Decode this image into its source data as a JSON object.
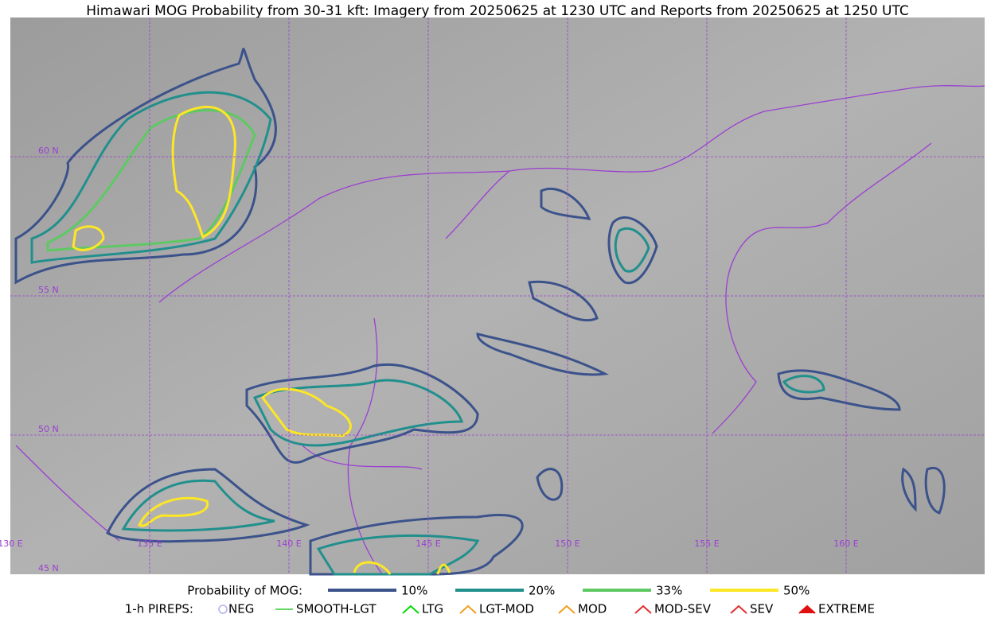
{
  "header": {
    "title": "Himawari MOG Probability from 30-31 kft: Imagery from 20250625 at 1230 UTC and Reports from 20250625 at 1250 UTC"
  },
  "map": {
    "lat_labels": [
      "60 N",
      "55 N",
      "50 N",
      "45 N"
    ],
    "lon_labels": [
      "130 E",
      "135 E",
      "140 E",
      "145 E",
      "150 E",
      "155 E",
      "160 E"
    ]
  },
  "legend": {
    "probability": {
      "title": "Probability of MOG:",
      "items": [
        {
          "label": "10%",
          "color": "#3b528b"
        },
        {
          "label": "20%",
          "color": "#21908d"
        },
        {
          "label": "33%",
          "color": "#5ec962"
        },
        {
          "label": "50%",
          "color": "#fde725"
        }
      ]
    },
    "pireps": {
      "title": "1-h PIREPS:",
      "items": [
        {
          "label": "NEG",
          "color": "#b0b0f0"
        },
        {
          "label": "SMOOTH-LGT",
          "color": "#33cc33"
        },
        {
          "label": "LTG",
          "color": "#00dd00"
        },
        {
          "label": "LGT-MOD",
          "color": "#f0a020"
        },
        {
          "label": "MOD",
          "color": "#f0a020"
        },
        {
          "label": "MOD-SEV",
          "color": "#e03030"
        },
        {
          "label": "SEV",
          "color": "#e03030"
        },
        {
          "label": "EXTREME",
          "color": "#e01010"
        }
      ]
    }
  }
}
